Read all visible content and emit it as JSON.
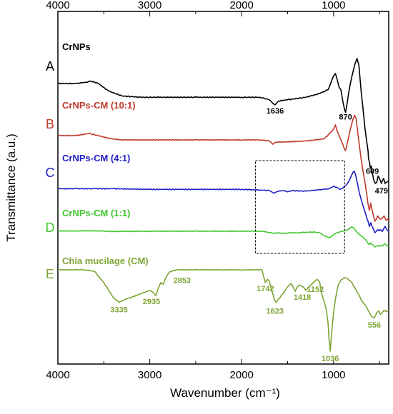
{
  "chart_data": {
    "type": "line",
    "xlabel": "Wavenumber (cm⁻¹)",
    "ylabel": "Transmittance (a.u.)",
    "xlim": [
      4000,
      400
    ],
    "x_reversed": true,
    "x_ticks": [
      4000,
      3000,
      2000,
      1000
    ],
    "x_tick_labels": [
      "4000",
      "3000",
      "2000",
      "1000"
    ],
    "top_axis_ticks": true,
    "grid": false,
    "legend": "none",
    "inset_box_x_range": [
      1850,
      880
    ],
    "series": [
      {
        "letter": "A",
        "name": "CrNPs",
        "color": "#000000",
        "points": [
          [
            4000,
            0.2
          ],
          [
            3800,
            0.2
          ],
          [
            3700,
            0.19
          ],
          [
            3640,
            0.18
          ],
          [
            3560,
            0.2
          ],
          [
            3450,
            0.26
          ],
          [
            3300,
            0.3
          ],
          [
            3100,
            0.31
          ],
          [
            2900,
            0.31
          ],
          [
            2500,
            0.31
          ],
          [
            2000,
            0.31
          ],
          [
            1800,
            0.31
          ],
          [
            1700,
            0.33
          ],
          [
            1660,
            0.36
          ],
          [
            1636,
            0.37
          ],
          [
            1600,
            0.34
          ],
          [
            1500,
            0.33
          ],
          [
            1300,
            0.31
          ],
          [
            1150,
            0.28
          ],
          [
            1060,
            0.25
          ],
          [
            1000,
            0.14
          ],
          [
            980,
            0.12
          ],
          [
            960,
            0.17
          ],
          [
            940,
            0.23
          ],
          [
            920,
            0.25
          ],
          [
            900,
            0.34
          ],
          [
            880,
            0.41
          ],
          [
            870,
            0.43
          ],
          [
            855,
            0.37
          ],
          [
            835,
            0.27
          ],
          [
            800,
            0.14
          ],
          [
            770,
            0.05
          ],
          [
            745,
            0.0
          ],
          [
            725,
            0.05
          ],
          [
            700,
            0.26
          ],
          [
            680,
            0.4
          ],
          [
            660,
            0.55
          ],
          [
            640,
            0.66
          ],
          [
            625,
            0.74
          ],
          [
            620,
            0.8
          ],
          [
            609,
            0.83
          ],
          [
            600,
            0.88
          ],
          [
            590,
            0.86
          ],
          [
            575,
            0.93
          ],
          [
            560,
            0.98
          ],
          [
            545,
            1.0
          ],
          [
            530,
            0.99
          ],
          [
            515,
            0.94
          ],
          [
            500,
            0.96
          ],
          [
            490,
            0.98
          ],
          [
            479,
            1.0
          ],
          [
            470,
            0.98
          ],
          [
            455,
            0.96
          ],
          [
            440,
            1.0
          ],
          [
            425,
            0.99
          ],
          [
            400,
            0.98
          ]
        ],
        "peak_labels": [
          {
            "x": 1636,
            "label": "1636"
          },
          {
            "x": 870,
            "label": "870"
          },
          {
            "x": 609,
            "label": "609"
          },
          {
            "x": 479,
            "label": "479"
          }
        ]
      },
      {
        "letter": "B",
        "name": "CrNPs-CM (10:1)",
        "color": "#c0392b",
        "points": [
          [
            4000,
            0.2
          ],
          [
            3800,
            0.2
          ],
          [
            3660,
            0.18
          ],
          [
            3560,
            0.2
          ],
          [
            3420,
            0.23
          ],
          [
            3300,
            0.24
          ],
          [
            3000,
            0.24
          ],
          [
            2500,
            0.24
          ],
          [
            2000,
            0.24
          ],
          [
            1800,
            0.24
          ],
          [
            1700,
            0.25
          ],
          [
            1660,
            0.28
          ],
          [
            1630,
            0.26
          ],
          [
            1550,
            0.26
          ],
          [
            1300,
            0.25
          ],
          [
            1100,
            0.23
          ],
          [
            1000,
            0.14
          ],
          [
            980,
            0.1
          ],
          [
            960,
            0.16
          ],
          [
            930,
            0.22
          ],
          [
            900,
            0.28
          ],
          [
            880,
            0.33
          ],
          [
            870,
            0.34
          ],
          [
            850,
            0.27
          ],
          [
            820,
            0.15
          ],
          [
            790,
            0.05
          ],
          [
            770,
            0.01
          ],
          [
            755,
            0.04
          ],
          [
            730,
            0.22
          ],
          [
            700,
            0.42
          ],
          [
            680,
            0.53
          ],
          [
            660,
            0.63
          ],
          [
            640,
            0.74
          ],
          [
            625,
            0.84
          ],
          [
            610,
            0.9
          ],
          [
            595,
            0.83
          ],
          [
            580,
            0.9
          ],
          [
            565,
            0.95
          ],
          [
            550,
            1.0
          ],
          [
            535,
            0.98
          ],
          [
            520,
            0.95
          ],
          [
            505,
            0.97
          ],
          [
            490,
            0.98
          ],
          [
            470,
            0.97
          ],
          [
            450,
            0.95
          ],
          [
            430,
            0.99
          ],
          [
            410,
            0.98
          ],
          [
            400,
            0.97
          ]
        ]
      },
      {
        "letter": "C",
        "name": "CrNPs-CM (4:1)",
        "color": "#1f1fc9",
        "points": [
          [
            4000,
            0.3
          ],
          [
            3800,
            0.3
          ],
          [
            3600,
            0.3
          ],
          [
            3400,
            0.3
          ],
          [
            3000,
            0.31
          ],
          [
            2500,
            0.31
          ],
          [
            2000,
            0.31
          ],
          [
            1800,
            0.32
          ],
          [
            1700,
            0.33
          ],
          [
            1650,
            0.37
          ],
          [
            1620,
            0.35
          ],
          [
            1560,
            0.33
          ],
          [
            1500,
            0.35
          ],
          [
            1450,
            0.33
          ],
          [
            1300,
            0.34
          ],
          [
            1200,
            0.32
          ],
          [
            1100,
            0.31
          ],
          [
            1050,
            0.3
          ],
          [
            1000,
            0.26
          ],
          [
            960,
            0.28
          ],
          [
            930,
            0.31
          ],
          [
            900,
            0.29
          ],
          [
            860,
            0.24
          ],
          [
            820,
            0.14
          ],
          [
            790,
            0.04
          ],
          [
            775,
            0.02
          ],
          [
            760,
            0.08
          ],
          [
            740,
            0.22
          ],
          [
            720,
            0.36
          ],
          [
            700,
            0.47
          ],
          [
            680,
            0.57
          ],
          [
            660,
            0.66
          ],
          [
            640,
            0.76
          ],
          [
            625,
            0.82
          ],
          [
            610,
            0.9
          ],
          [
            595,
            0.84
          ],
          [
            580,
            0.9
          ],
          [
            565,
            0.95
          ],
          [
            550,
            1.0
          ],
          [
            535,
            0.98
          ],
          [
            520,
            0.95
          ],
          [
            505,
            0.97
          ],
          [
            490,
            0.95
          ],
          [
            470,
            0.98
          ],
          [
            455,
            0.94
          ],
          [
            440,
            0.9
          ],
          [
            425,
            0.94
          ],
          [
            410,
            0.97
          ],
          [
            400,
            0.97
          ]
        ]
      },
      {
        "letter": "D",
        "name": "CrNPs-CM (1:1)",
        "color": "#3fc72d",
        "points": [
          [
            4000,
            0.2
          ],
          [
            3800,
            0.2
          ],
          [
            3600,
            0.19
          ],
          [
            3500,
            0.21
          ],
          [
            3400,
            0.22
          ],
          [
            3300,
            0.22
          ],
          [
            3000,
            0.21
          ],
          [
            2500,
            0.21
          ],
          [
            2000,
            0.21
          ],
          [
            1800,
            0.21
          ],
          [
            1750,
            0.24
          ],
          [
            1700,
            0.28
          ],
          [
            1660,
            0.32
          ],
          [
            1630,
            0.3
          ],
          [
            1600,
            0.29
          ],
          [
            1550,
            0.33
          ],
          [
            1500,
            0.3
          ],
          [
            1450,
            0.28
          ],
          [
            1400,
            0.3
          ],
          [
            1300,
            0.26
          ],
          [
            1200,
            0.26
          ],
          [
            1150,
            0.3
          ],
          [
            1100,
            0.44
          ],
          [
            1060,
            0.52
          ],
          [
            1040,
            0.53
          ],
          [
            1000,
            0.4
          ],
          [
            970,
            0.3
          ],
          [
            930,
            0.24
          ],
          [
            900,
            0.21
          ],
          [
            870,
            0.17
          ],
          [
            840,
            0.12
          ],
          [
            820,
            0.04
          ],
          [
            800,
            0.0
          ],
          [
            780,
            0.05
          ],
          [
            760,
            0.18
          ],
          [
            740,
            0.29
          ],
          [
            720,
            0.36
          ],
          [
            700,
            0.44
          ],
          [
            680,
            0.52
          ],
          [
            660,
            0.6
          ],
          [
            640,
            0.7
          ],
          [
            625,
            0.82
          ],
          [
            610,
            0.88
          ],
          [
            595,
            0.8
          ],
          [
            580,
            0.88
          ],
          [
            565,
            0.93
          ],
          [
            550,
            1.0
          ],
          [
            535,
            0.97
          ],
          [
            520,
            0.93
          ],
          [
            505,
            0.96
          ],
          [
            490,
            0.93
          ],
          [
            470,
            0.96
          ],
          [
            455,
            0.88
          ],
          [
            440,
            0.84
          ],
          [
            425,
            0.92
          ],
          [
            410,
            0.96
          ],
          [
            400,
            0.96
          ]
        ]
      },
      {
        "letter": "E",
        "name": "Chia mucilage (CM)",
        "color": "#7da534",
        "points": [
          [
            4000,
            0.0
          ],
          [
            3800,
            0.0
          ],
          [
            3700,
            0.0
          ],
          [
            3600,
            0.02
          ],
          [
            3500,
            0.15
          ],
          [
            3400,
            0.32
          ],
          [
            3335,
            0.38
          ],
          [
            3250,
            0.34
          ],
          [
            3100,
            0.28
          ],
          [
            3000,
            0.24
          ],
          [
            2960,
            0.27
          ],
          [
            2935,
            0.3
          ],
          [
            2910,
            0.22
          ],
          [
            2880,
            0.15
          ],
          [
            2853,
            0.17
          ],
          [
            2820,
            0.08
          ],
          [
            2780,
            0.02
          ],
          [
            2700,
            0.0
          ],
          [
            2500,
            0.0
          ],
          [
            2200,
            0.0
          ],
          [
            2000,
            0.0
          ],
          [
            1850,
            0.0
          ],
          [
            1780,
            0.0
          ],
          [
            1742,
            0.15
          ],
          [
            1720,
            0.11
          ],
          [
            1700,
            0.13
          ],
          [
            1670,
            0.25
          ],
          [
            1640,
            0.36
          ],
          [
            1623,
            0.38
          ],
          [
            1600,
            0.34
          ],
          [
            1550,
            0.28
          ],
          [
            1500,
            0.2
          ],
          [
            1460,
            0.16
          ],
          [
            1440,
            0.2
          ],
          [
            1418,
            0.25
          ],
          [
            1400,
            0.21
          ],
          [
            1380,
            0.18
          ],
          [
            1330,
            0.2
          ],
          [
            1300,
            0.24
          ],
          [
            1260,
            0.19
          ],
          [
            1240,
            0.17
          ],
          [
            1200,
            0.13
          ],
          [
            1180,
            0.11
          ],
          [
            1152,
            0.14
          ],
          [
            1130,
            0.28
          ],
          [
            1100,
            0.38
          ],
          [
            1080,
            0.46
          ],
          [
            1060,
            0.62
          ],
          [
            1050,
            0.8
          ],
          [
            1036,
            0.95
          ],
          [
            1020,
            0.72
          ],
          [
            1000,
            0.5
          ],
          [
            980,
            0.34
          ],
          [
            950,
            0.18
          ],
          [
            920,
            0.12
          ],
          [
            880,
            0.09
          ],
          [
            850,
            0.1
          ],
          [
            800,
            0.15
          ],
          [
            750,
            0.25
          ],
          [
            720,
            0.3
          ],
          [
            700,
            0.35
          ],
          [
            680,
            0.38
          ],
          [
            650,
            0.42
          ],
          [
            620,
            0.48
          ],
          [
            600,
            0.52
          ],
          [
            580,
            0.55
          ],
          [
            556,
            0.56
          ],
          [
            530,
            0.5
          ],
          [
            510,
            0.48
          ],
          [
            490,
            0.52
          ],
          [
            470,
            0.5
          ],
          [
            450,
            0.47
          ],
          [
            430,
            0.49
          ],
          [
            400,
            0.47
          ]
        ],
        "peak_labels": [
          {
            "x": 3335,
            "label": "3335"
          },
          {
            "x": 2935,
            "label": "2935"
          },
          {
            "x": 2853,
            "label": "2853"
          },
          {
            "x": 1742,
            "label": "1742"
          },
          {
            "x": 1623,
            "label": "1623"
          },
          {
            "x": 1418,
            "label": "1418"
          },
          {
            "x": 1152,
            "label": "1152"
          },
          {
            "x": 1036,
            "label": "1036"
          },
          {
            "x": 556,
            "label": "556"
          }
        ]
      }
    ]
  }
}
